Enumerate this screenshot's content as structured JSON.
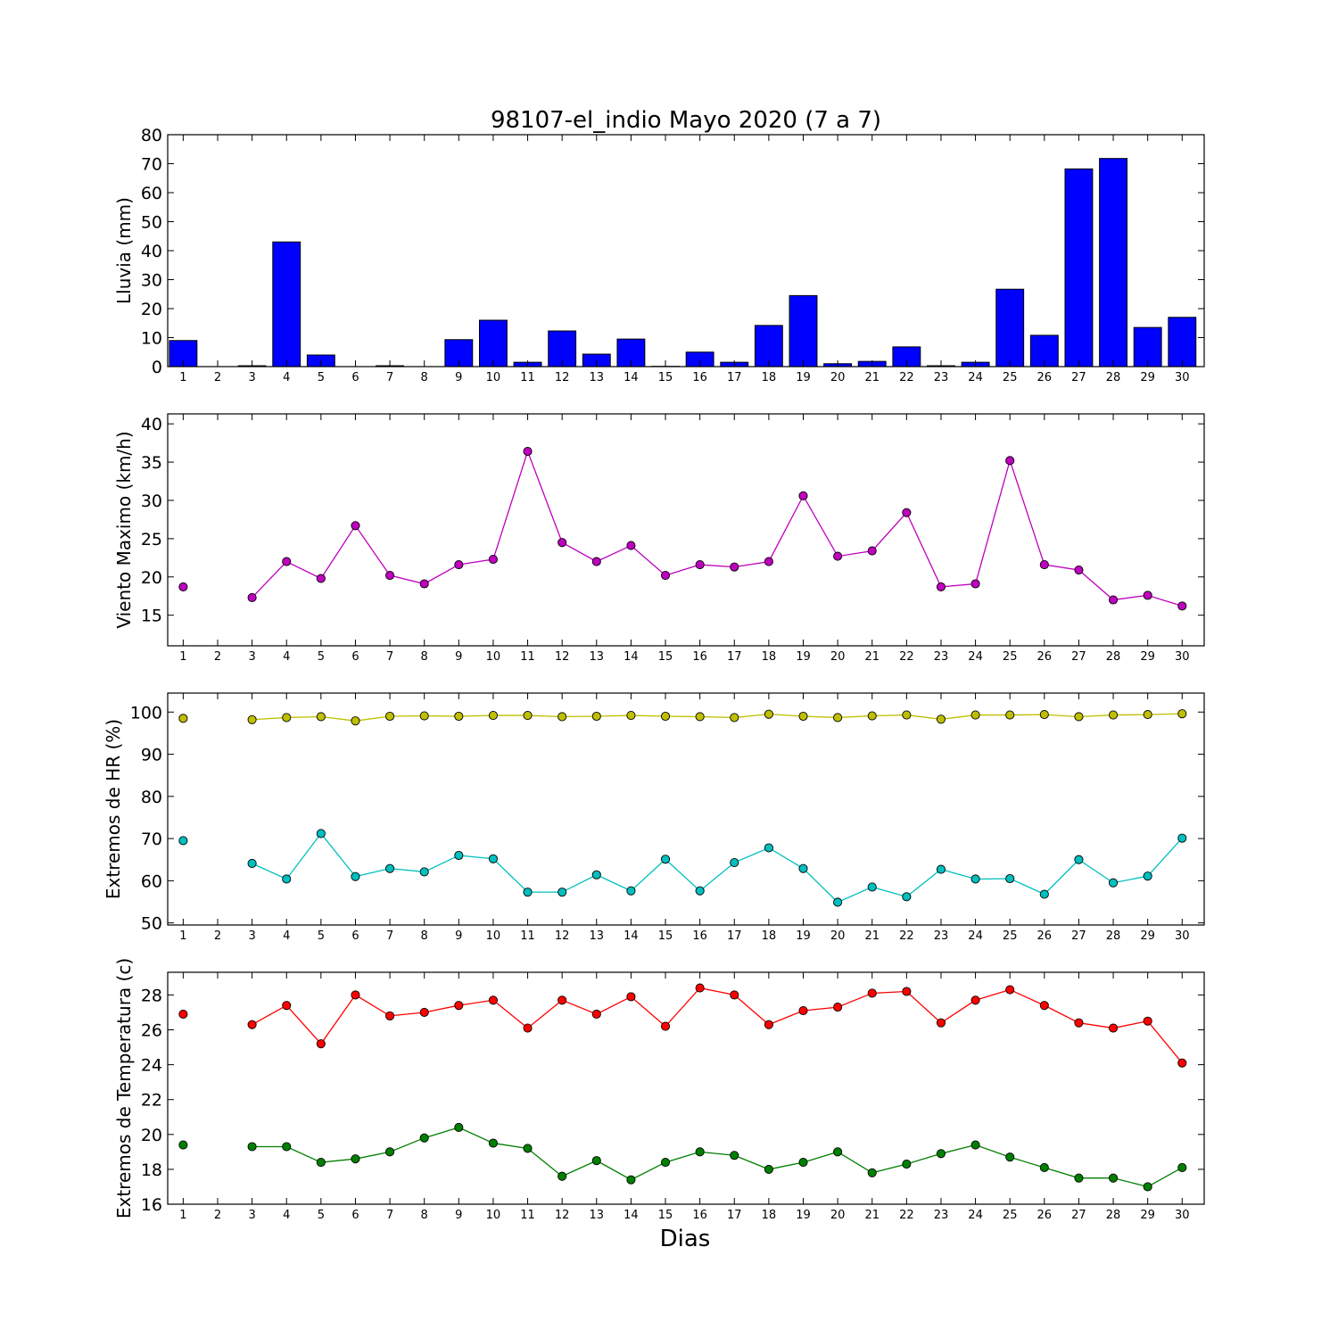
{
  "chart_data": [
    {
      "type": "bar",
      "title": "98107-el_indio Mayo 2020  (7 a 7)",
      "ylabel": "Lluvia (mm)",
      "ylim": [
        0,
        80
      ],
      "yticks": [
        0,
        10,
        20,
        30,
        40,
        50,
        60,
        70,
        80
      ],
      "categories": [
        "1",
        "2",
        "3",
        "4",
        "5",
        "6",
        "7",
        "8",
        "9",
        "10",
        "11",
        "12",
        "13",
        "14",
        "15",
        "16",
        "17",
        "18",
        "19",
        "20",
        "21",
        "22",
        "23",
        "24",
        "25",
        "26",
        "27",
        "28",
        "29",
        "30"
      ],
      "color": "#0000ff",
      "values": [
        9.0,
        0,
        0.3,
        43.0,
        4.0,
        0,
        0.3,
        0,
        9.3,
        16.0,
        1.5,
        12.3,
        4.3,
        9.5,
        0.1,
        5.0,
        1.5,
        14.2,
        24.5,
        1.0,
        1.8,
        6.8,
        0.3,
        1.5,
        26.7,
        10.8,
        68.2,
        71.8,
        13.5,
        17.0
      ],
      "grid": false
    },
    {
      "type": "line",
      "ylabel": "Viento Maximo (km/h)",
      "ylim": [
        11,
        41.3
      ],
      "yticks": [
        15,
        20,
        25,
        30,
        35,
        40
      ],
      "x": [
        1,
        2,
        3,
        4,
        5,
        6,
        7,
        8,
        9,
        10,
        11,
        12,
        13,
        14,
        15,
        16,
        17,
        18,
        19,
        20,
        21,
        22,
        23,
        24,
        25,
        26,
        27,
        28,
        29,
        30
      ],
      "series": [
        {
          "color": "#bf00bf",
          "values": [
            18.7,
            null,
            17.3,
            22.0,
            19.8,
            26.7,
            20.2,
            19.1,
            21.6,
            22.3,
            36.4,
            24.5,
            22.0,
            24.1,
            20.2,
            21.6,
            21.3,
            22.0,
            30.6,
            22.7,
            23.4,
            28.4,
            18.7,
            19.1,
            35.2,
            21.6,
            20.9,
            17.0,
            17.6,
            16.2
          ]
        }
      ],
      "grid": false
    },
    {
      "type": "line",
      "ylabel": "Extremos de HR (%)",
      "ylim": [
        49.5,
        104.5
      ],
      "yticks": [
        50,
        60,
        70,
        80,
        90,
        100
      ],
      "x": [
        1,
        2,
        3,
        4,
        5,
        6,
        7,
        8,
        9,
        10,
        11,
        12,
        13,
        14,
        15,
        16,
        17,
        18,
        19,
        20,
        21,
        22,
        23,
        24,
        25,
        26,
        27,
        28,
        29,
        30
      ],
      "series": [
        {
          "color": "#bfbf00",
          "values": [
            98.5,
            null,
            98.2,
            98.7,
            98.9,
            97.9,
            99.0,
            99.1,
            99.0,
            99.2,
            99.2,
            98.9,
            99.0,
            99.2,
            99.0,
            98.9,
            98.7,
            99.5,
            99.0,
            98.7,
            99.1,
            99.3,
            98.3,
            99.3,
            99.3,
            99.4,
            98.9,
            99.3,
            99.4,
            99.6
          ]
        },
        {
          "color": "#00bfbf",
          "values": [
            69.5,
            null,
            64.1,
            60.4,
            71.2,
            61.0,
            62.9,
            62.1,
            66.0,
            65.2,
            57.3,
            57.3,
            61.4,
            57.6,
            65.1,
            57.6,
            64.3,
            67.8,
            62.9,
            54.9,
            58.5,
            56.2,
            62.7,
            60.4,
            60.5,
            56.8,
            65.0,
            59.5,
            61.1,
            70.1
          ]
        }
      ],
      "grid": false
    },
    {
      "type": "line",
      "ylabel": "Extremos de Temperatura (c)",
      "xlabel": "Dias",
      "ylim": [
        16,
        29.3
      ],
      "yticks": [
        16,
        18,
        20,
        22,
        24,
        26,
        28
      ],
      "x": [
        1,
        2,
        3,
        4,
        5,
        6,
        7,
        8,
        9,
        10,
        11,
        12,
        13,
        14,
        15,
        16,
        17,
        18,
        19,
        20,
        21,
        22,
        23,
        24,
        25,
        26,
        27,
        28,
        29,
        30
      ],
      "series": [
        {
          "color": "#ff0000",
          "values": [
            26.9,
            null,
            26.3,
            27.4,
            25.2,
            28.0,
            26.8,
            27.0,
            27.4,
            27.7,
            26.1,
            27.7,
            26.9,
            27.9,
            26.2,
            28.4,
            28.0,
            26.3,
            27.1,
            27.3,
            28.1,
            28.2,
            26.4,
            27.7,
            28.3,
            27.4,
            26.4,
            26.1,
            26.5,
            24.1
          ]
        },
        {
          "color": "#008000",
          "values": [
            19.4,
            null,
            19.3,
            19.3,
            18.4,
            18.6,
            19.0,
            19.8,
            20.4,
            19.5,
            19.2,
            17.6,
            18.5,
            17.4,
            18.4,
            19.0,
            18.8,
            18.0,
            18.4,
            19.0,
            17.8,
            18.3,
            18.9,
            19.4,
            18.7,
            18.1,
            17.5,
            17.5,
            17.0,
            18.1
          ]
        }
      ],
      "grid": false
    }
  ]
}
